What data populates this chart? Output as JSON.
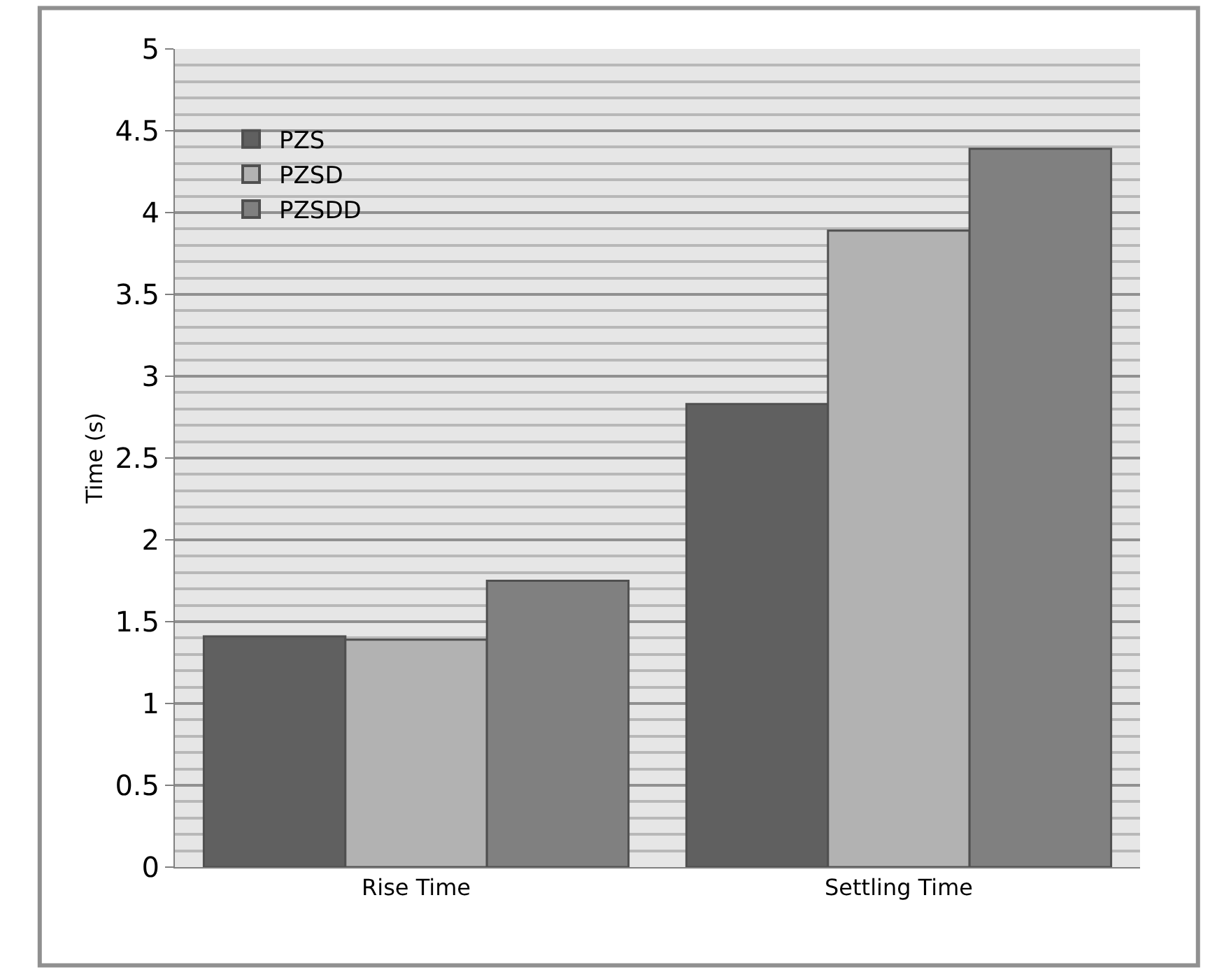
{
  "chart_data": {
    "type": "bar",
    "ylabel": "Time (s)",
    "categories": [
      "Rise Time",
      "Settling Time"
    ],
    "series": [
      {
        "name": "PZS",
        "color": "#606060",
        "values": [
          1.41,
          2.83
        ]
      },
      {
        "name": "PZSD",
        "color": "#b2b2b2",
        "values": [
          1.39,
          3.89
        ]
      },
      {
        "name": "PZSDD",
        "color": "#808080",
        "values": [
          1.75,
          4.39
        ]
      }
    ],
    "ylim": [
      0,
      5
    ],
    "yticks": [
      0,
      0.5,
      1,
      1.5,
      2,
      2.5,
      3,
      3.5,
      4,
      4.5,
      5
    ],
    "grid": "y",
    "legend": "top left"
  }
}
